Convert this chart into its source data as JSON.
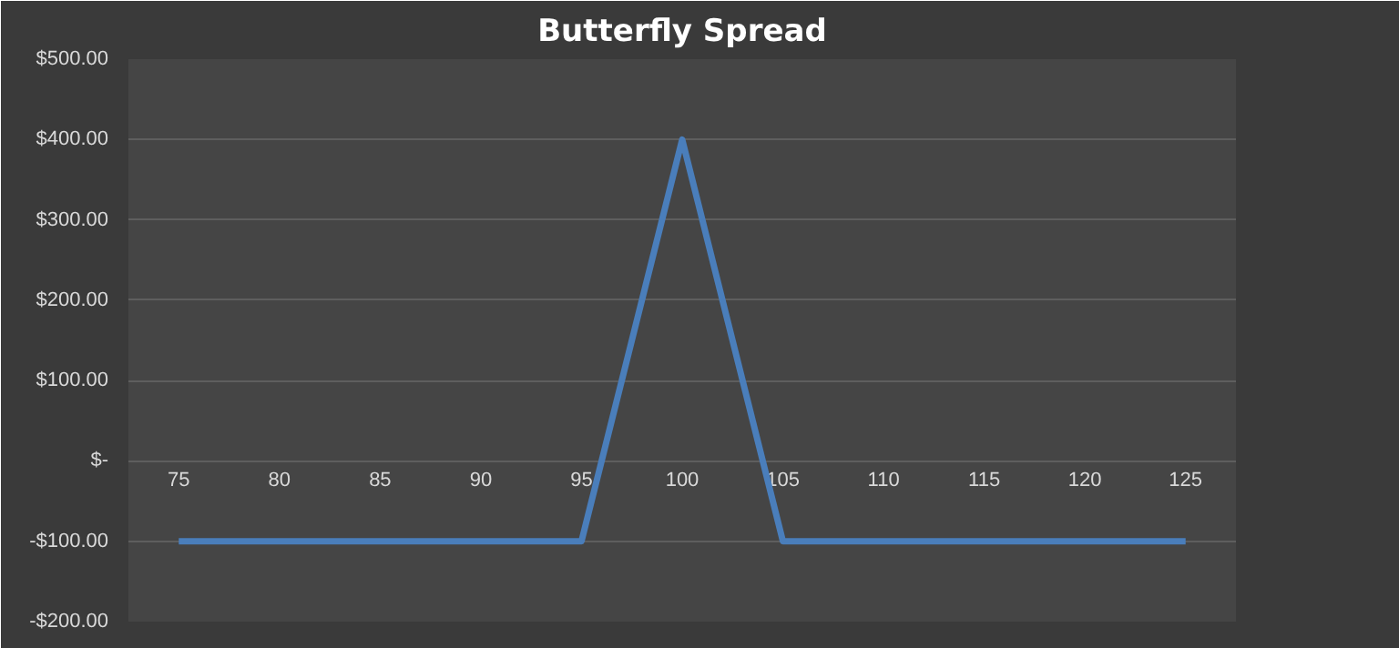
{
  "chart_data": {
    "type": "line",
    "title": "Butterfly Spread",
    "categories": [
      "75",
      "80",
      "85",
      "90",
      "95",
      "100",
      "105",
      "110",
      "115",
      "120",
      "125"
    ],
    "series": [
      {
        "color": "#4a7ebb",
        "values": [
          -100,
          -100,
          -100,
          -100,
          -100,
          400,
          -100,
          -100,
          -100,
          -100,
          -100
        ]
      }
    ],
    "ylim": [
      -200,
      500
    ],
    "yticks": [
      {
        "value": -200,
        "label": "-$200.00"
      },
      {
        "value": -100,
        "label": "-$100.00"
      },
      {
        "value": 0,
        "label": "$-"
      },
      {
        "value": 100,
        "label": "$100.00"
      },
      {
        "value": 200,
        "label": "$200.00"
      },
      {
        "value": 300,
        "label": "$300.00"
      },
      {
        "value": 400,
        "label": "$400.00"
      },
      {
        "value": 500,
        "label": "$500.00"
      }
    ],
    "grid": "y",
    "marker": "none",
    "line_style": "solid"
  }
}
